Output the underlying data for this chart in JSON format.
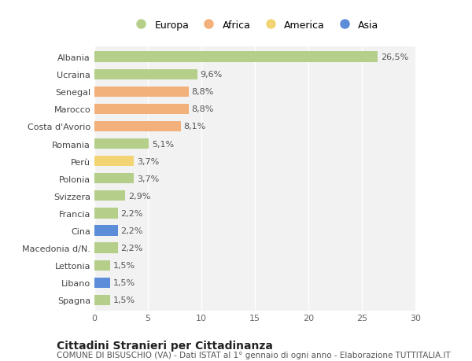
{
  "countries": [
    "Albania",
    "Ucraina",
    "Senegal",
    "Marocco",
    "Costa d'Avorio",
    "Romania",
    "Perù",
    "Polonia",
    "Svizzera",
    "Francia",
    "Cina",
    "Macedonia d/N.",
    "Lettonia",
    "Libano",
    "Spagna"
  ],
  "values": [
    26.5,
    9.6,
    8.8,
    8.8,
    8.1,
    5.1,
    3.7,
    3.7,
    2.9,
    2.2,
    2.2,
    2.2,
    1.5,
    1.5,
    1.5
  ],
  "labels": [
    "26,5%",
    "9,6%",
    "8,8%",
    "8,8%",
    "8,1%",
    "5,1%",
    "3,7%",
    "3,7%",
    "2,9%",
    "2,2%",
    "2,2%",
    "2,2%",
    "1,5%",
    "1,5%",
    "1,5%"
  ],
  "continents": [
    "Europa",
    "Europa",
    "Africa",
    "Africa",
    "Africa",
    "Europa",
    "America",
    "Europa",
    "Europa",
    "Europa",
    "Asia",
    "Europa",
    "Europa",
    "Asia",
    "Europa"
  ],
  "continent_colors": {
    "Europa": "#b5cf8a",
    "Africa": "#f2b07a",
    "America": "#f2d472",
    "Asia": "#5b8dd9"
  },
  "legend_order": [
    "Europa",
    "Africa",
    "America",
    "Asia"
  ],
  "title": "Cittadini Stranieri per Cittadinanza",
  "subtitle": "COMUNE DI BISUSCHIO (VA) - Dati ISTAT al 1° gennaio di ogni anno - Elaborazione TUTTITALIA.IT",
  "xlim": [
    0,
    30
  ],
  "xticks": [
    0,
    5,
    10,
    15,
    20,
    25,
    30
  ],
  "bg_color": "#ffffff",
  "plot_bg_color": "#f2f2f2",
  "grid_color": "#ffffff",
  "title_fontsize": 10,
  "subtitle_fontsize": 7.5,
  "label_fontsize": 8,
  "tick_fontsize": 8,
  "legend_fontsize": 9,
  "bar_height": 0.6
}
